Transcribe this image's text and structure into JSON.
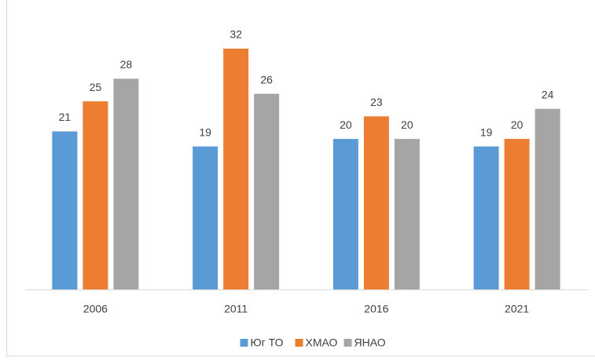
{
  "chart_data": {
    "type": "bar",
    "categories": [
      "2006",
      "2011",
      "2016",
      "2021"
    ],
    "series": [
      {
        "name": "Юг ТО",
        "color": "#5b9bd5",
        "values": [
          21,
          19,
          20,
          19
        ]
      },
      {
        "name": "ХМАО",
        "color": "#ed7d31",
        "values": [
          25,
          32,
          23,
          20
        ]
      },
      {
        "name": "ЯНАО",
        "color": "#a5a5a5",
        "values": [
          28,
          26,
          20,
          24
        ]
      }
    ],
    "legend": "bottom"
  }
}
